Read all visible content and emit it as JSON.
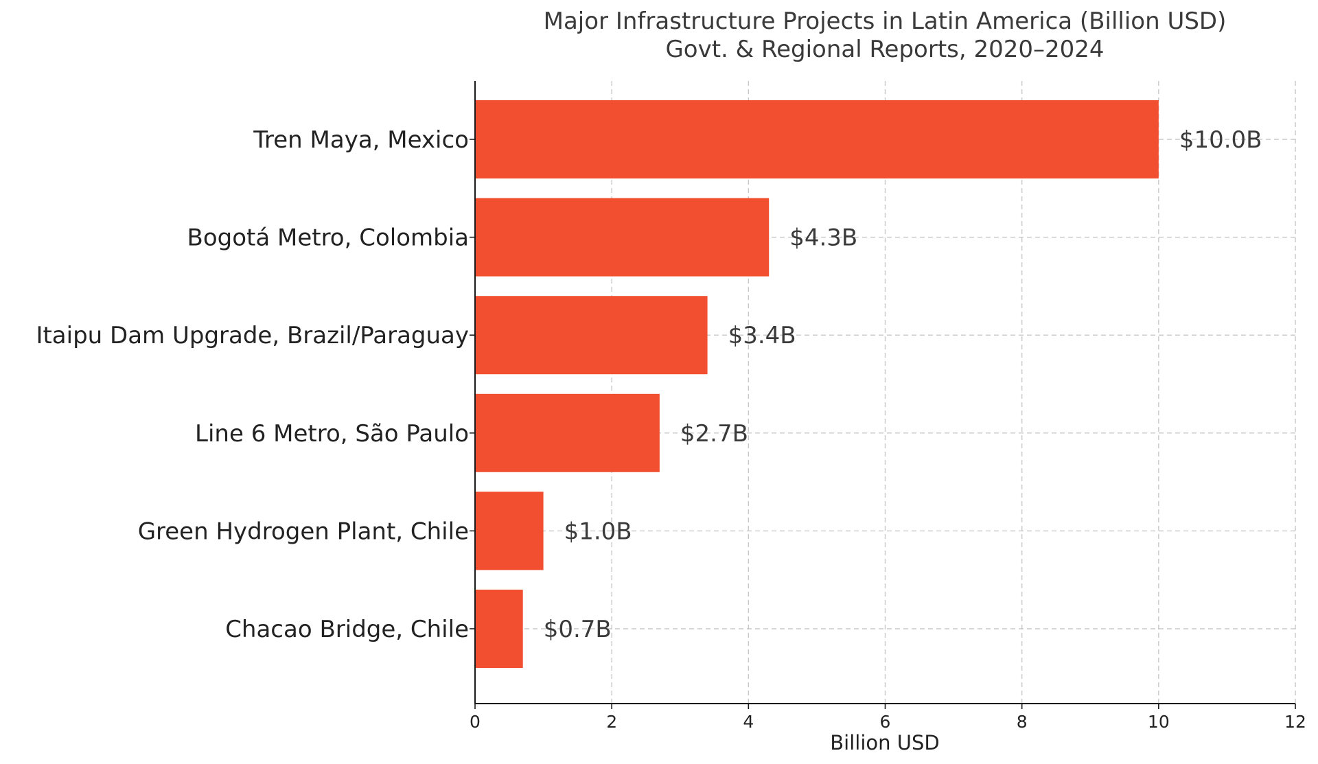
{
  "chart_data": {
    "type": "bar",
    "orientation": "horizontal",
    "title": "Major Infrastructure Projects in Latin America (Billion USD)",
    "subtitle": "Govt. & Regional Reports, 2020–2024",
    "xlabel": "Billion USD",
    "ylabel": "",
    "xlim": [
      0,
      12
    ],
    "x_ticks": [
      0,
      2,
      4,
      6,
      8,
      10,
      12
    ],
    "grid": true,
    "bar_color": "#f24e30",
    "categories": [
      "Tren Maya, Mexico",
      "Bogotá Metro, Colombia",
      "Itaipu Dam Upgrade, Brazil/Paraguay",
      "Line 6 Metro, São Paulo",
      "Green Hydrogen Plant, Chile",
      "Chacao Bridge, Chile"
    ],
    "values": [
      10.0,
      4.3,
      3.4,
      2.7,
      1.0,
      0.7
    ],
    "value_labels": [
      "$10.0B",
      "$4.3B",
      "$3.4B",
      "$2.7B",
      "$1.0B",
      "$0.7B"
    ]
  }
}
